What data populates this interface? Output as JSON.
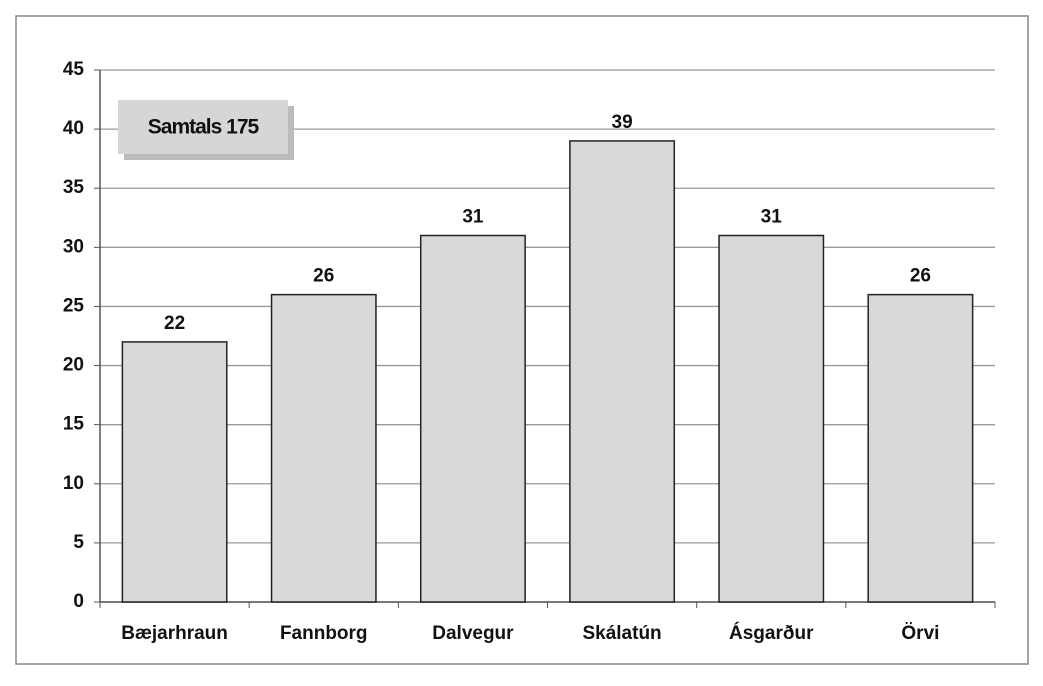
{
  "chart_data": {
    "type": "bar",
    "annotation": "Samtals 175",
    "categories": [
      "Bæjarhraun",
      "Fannborg",
      "Dalvegur",
      "Skálatún",
      "Ásgarður",
      "Örvi"
    ],
    "values": [
      22,
      26,
      31,
      39,
      31,
      26
    ],
    "color": "#d9d9d9",
    "ylim": [
      0,
      45
    ],
    "yticks": [
      0,
      5,
      10,
      15,
      20,
      25,
      30,
      35,
      40,
      45
    ],
    "grid": true
  }
}
